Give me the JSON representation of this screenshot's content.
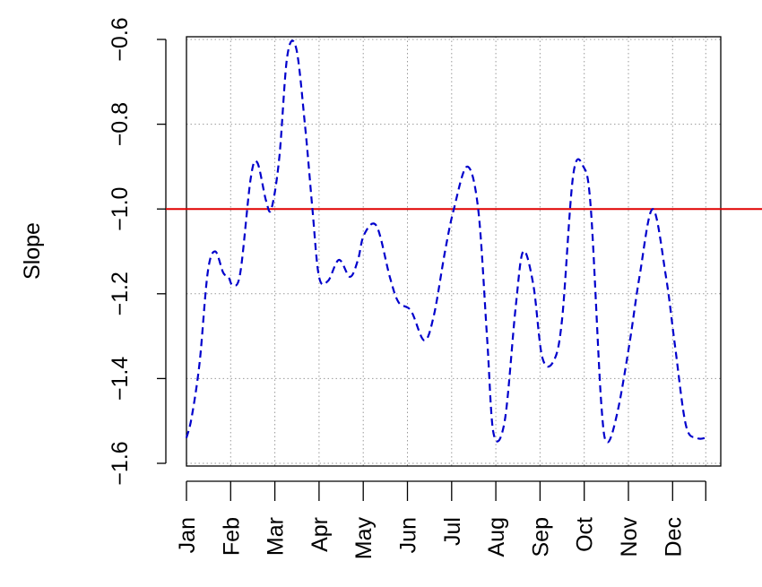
{
  "chart_data": {
    "type": "line",
    "title": "",
    "xlabel": "",
    "ylabel": "Slope",
    "ylim": [
      -1.6,
      -0.6
    ],
    "yticks": [
      -1.6,
      -1.4,
      -1.2,
      -1.0,
      -0.8,
      -0.6
    ],
    "ytick_labels": [
      "−1.6",
      "−1.4",
      "−1.2",
      "−1.0",
      "−0.8",
      "−0.6"
    ],
    "grid": true,
    "x_categories": [
      "Jan",
      "Feb",
      "Mar",
      "Apr",
      "May",
      "Jun",
      "Jul",
      "Aug",
      "Sep",
      "Oct",
      "Nov",
      "Dec"
    ],
    "xlim": [
      0,
      11.75
    ],
    "x_ticks": [
      0,
      1,
      2,
      3,
      4,
      5,
      6,
      7,
      8,
      9,
      10,
      11,
      11.75
    ],
    "reference_line": {
      "y": -1.0,
      "color": "#e00000"
    },
    "series": [
      {
        "color": "#0000cc",
        "style": "dashed",
        "x": [
          0,
          0.12,
          0.3,
          0.48,
          0.65,
          0.83,
          0.95,
          1.05,
          1.22,
          1.45,
          1.6,
          1.8,
          1.92,
          2.1,
          2.28,
          2.48,
          2.68,
          2.85,
          3.0,
          3.2,
          3.45,
          3.7,
          3.88,
          4.02,
          4.3,
          4.6,
          4.8,
          5.08,
          5.38,
          5.6,
          5.85,
          6.05,
          6.35,
          6.6,
          6.8,
          6.95,
          7.2,
          7.45,
          7.62,
          7.85,
          8.05,
          8.3,
          8.5,
          8.75,
          8.98,
          9.15,
          9.38,
          9.52,
          9.75,
          10.02,
          10.25,
          10.55,
          10.85,
          11.05,
          11.3,
          11.55,
          11.75
        ],
        "y": [
          -1.54,
          -1.49,
          -1.36,
          -1.15,
          -1.1,
          -1.15,
          -1.16,
          -1.18,
          -1.15,
          -0.93,
          -0.89,
          -0.98,
          -1.0,
          -0.88,
          -0.64,
          -0.62,
          -0.8,
          -1.0,
          -1.16,
          -1.17,
          -1.12,
          -1.16,
          -1.12,
          -1.06,
          -1.04,
          -1.16,
          -1.22,
          -1.24,
          -1.31,
          -1.25,
          -1.1,
          -1.0,
          -0.9,
          -1.0,
          -1.3,
          -1.53,
          -1.5,
          -1.23,
          -1.1,
          -1.18,
          -1.35,
          -1.36,
          -1.26,
          -0.92,
          -0.9,
          -1.0,
          -1.45,
          -1.55,
          -1.48,
          -1.32,
          -1.16,
          -1.0,
          -1.16,
          -1.32,
          -1.51,
          -1.54,
          -1.54
        ]
      }
    ]
  }
}
